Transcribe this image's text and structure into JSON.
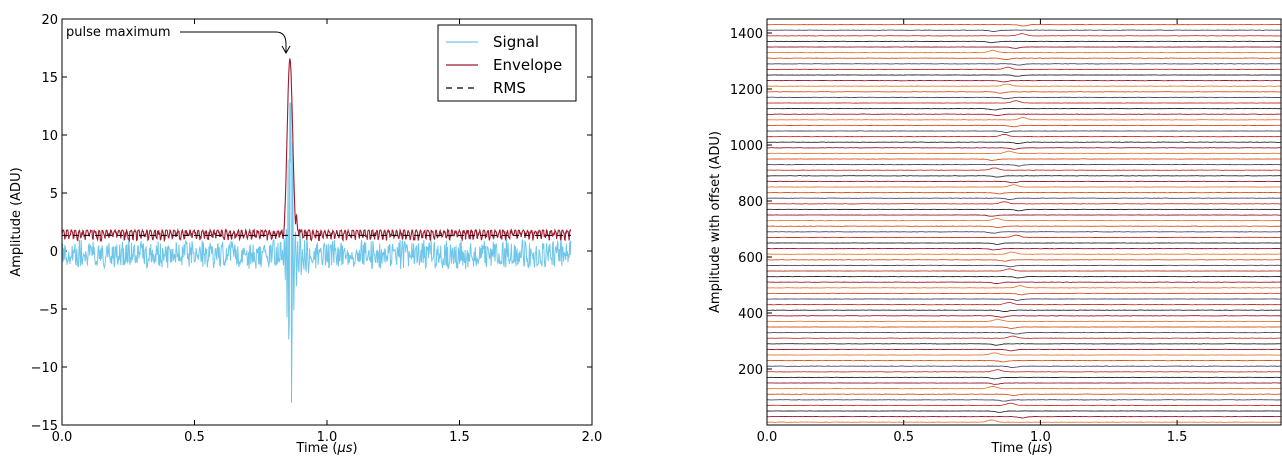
{
  "chart_data": [
    {
      "type": "line",
      "xlabel_main": "Time (",
      "xlabel_unit": "μs",
      "xlabel_close": ")",
      "ylabel": "Amplitude (ADU)",
      "xlim": [
        0.0,
        2.0
      ],
      "ylim": [
        -15,
        20
      ],
      "xticks": [
        "0.0",
        "0.5",
        "1.0",
        "1.5",
        "2.0"
      ],
      "yticks": [
        "−15",
        "−10",
        "−5",
        "0",
        "5",
        "10",
        "15",
        "20"
      ],
      "annotation": "pulse maximum",
      "legend_position": "top-right",
      "series": [
        {
          "name": "Signal",
          "color": "#6ec6ea",
          "style": "solid"
        },
        {
          "name": "Envelope",
          "color": "#9b1b30",
          "style": "solid"
        },
        {
          "name": "RMS",
          "color": "#000000",
          "style": "dashed"
        }
      ],
      "pulse": {
        "time": 0.86,
        "envelope_peak": 16.6,
        "signal_peak": 12.5,
        "signal_min": -14.3
      },
      "rms_level": 1.35,
      "time_end": 1.92
    },
    {
      "type": "line",
      "xlabel_main": "Time (",
      "xlabel_unit": "μs",
      "xlabel_close": ")",
      "ylabel": "Amplitude with offset (ADU)",
      "xlim": [
        0.0,
        1.88
      ],
      "ylim": [
        0,
        1450
      ],
      "xticks": [
        "0.0",
        "0.5",
        "1.0",
        "1.5"
      ],
      "yticks": [
        "200",
        "400",
        "600",
        "800",
        "1000",
        "1200",
        "1400"
      ],
      "trace_count": 72,
      "trace_spacing": 20,
      "pulse_time_center": 0.88,
      "trace_colors": [
        "#e67a3c",
        "#9b1b30",
        "#2a2a2a",
        "#c0392b",
        "#4a4a6a",
        "#d9541e"
      ]
    }
  ]
}
